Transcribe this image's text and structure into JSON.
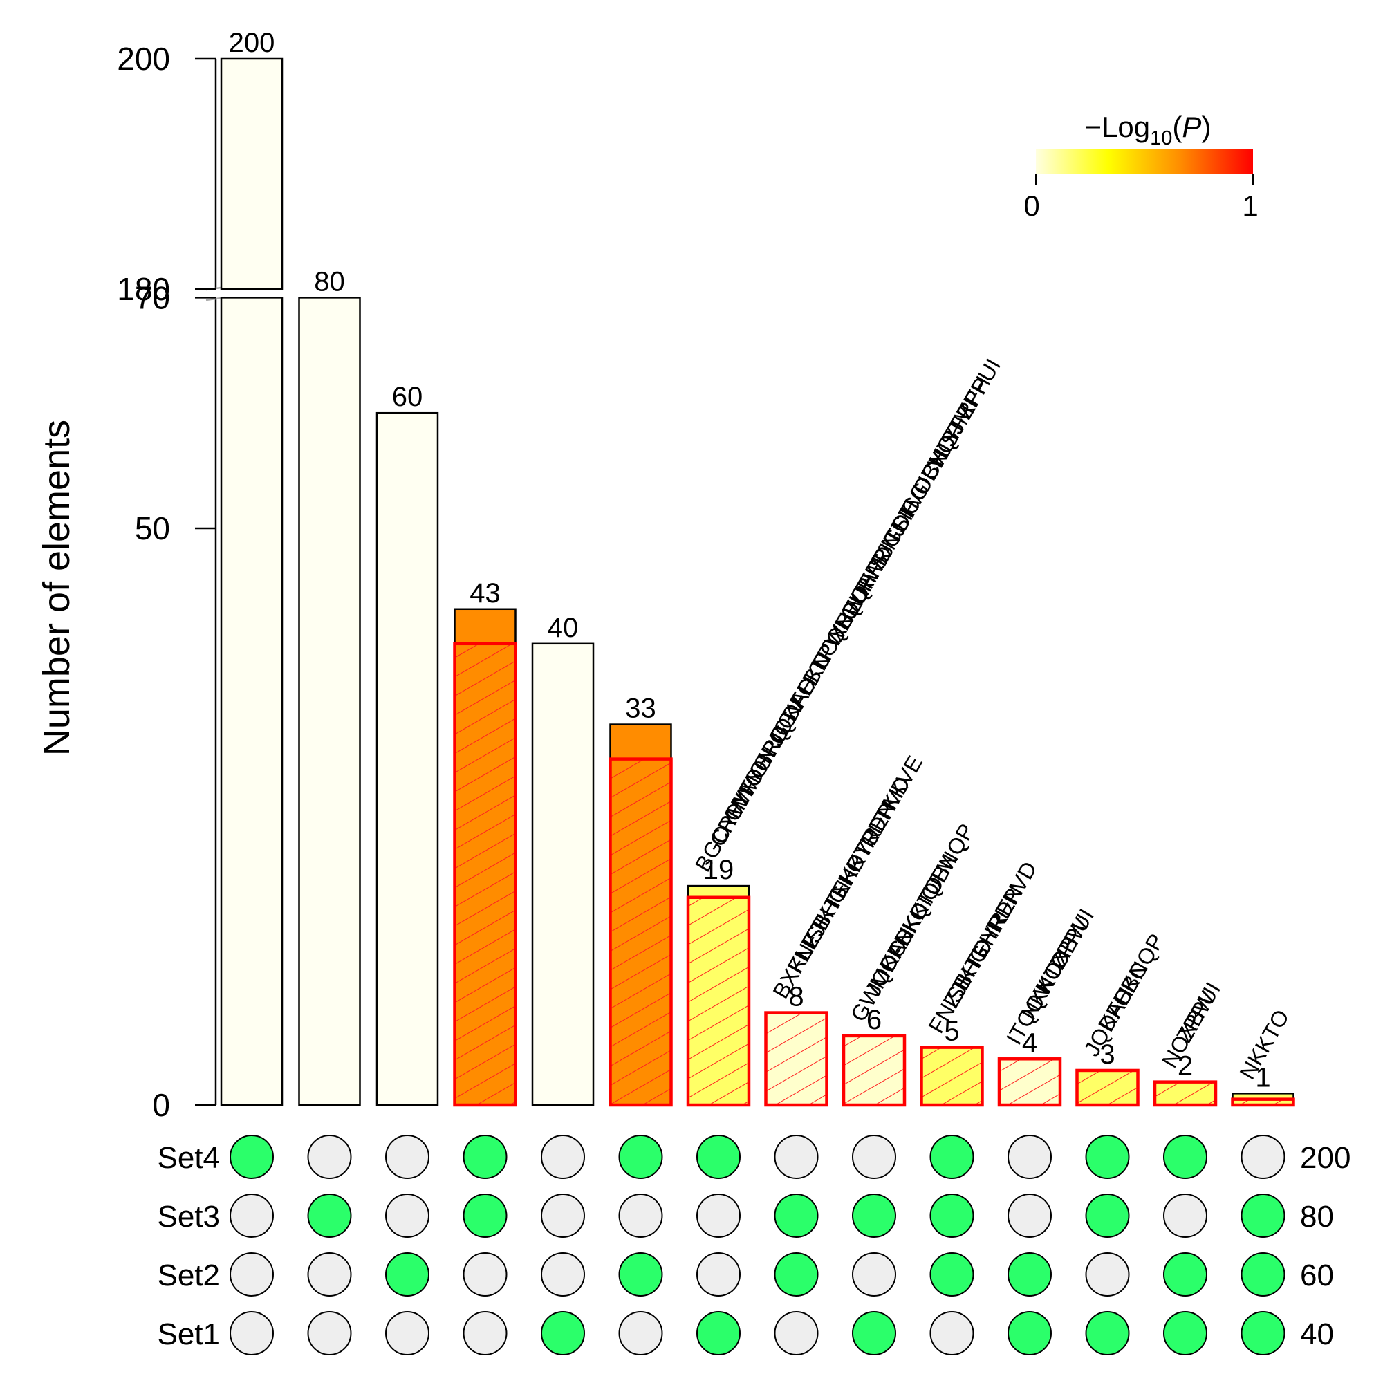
{
  "chart_data": {
    "type": "bar",
    "ylabel": "Number of elements",
    "y_axis": {
      "break": true,
      "lower_ticks": [
        0,
        50,
        70
      ],
      "upper_ticks": [
        180,
        200
      ],
      "lower_range": [
        0,
        70
      ],
      "upper_range": [
        180,
        200
      ]
    },
    "legend": {
      "title_prefix": "−Log",
      "title_sub": "10",
      "title_open": "(",
      "title_var": "P",
      "title_close": ")",
      "min_label": "0",
      "max_label": "1",
      "placement": "top-right",
      "colors": [
        "#ffffe0",
        "#ffff00",
        "#ff8c00",
        "#ff0000"
      ]
    },
    "sets": [
      {
        "name": "Set4",
        "size": "200"
      },
      {
        "name": "Set3",
        "size": "80"
      },
      {
        "name": "Set2",
        "size": "60"
      },
      {
        "name": "Set1",
        "size": "40"
      }
    ],
    "bars": [
      {
        "label": "200",
        "value": 200,
        "sets": [
          1,
          0,
          0,
          0
        ],
        "highlighted": false,
        "expected": null,
        "color": "#fffff2",
        "names": []
      },
      {
        "label": "80",
        "value": 80,
        "sets": [
          0,
          1,
          0,
          0
        ],
        "highlighted": false,
        "expected": null,
        "color": "#fffff2",
        "names": []
      },
      {
        "label": "60",
        "value": 60,
        "sets": [
          0,
          0,
          1,
          0
        ],
        "highlighted": false,
        "expected": null,
        "color": "#fffff2",
        "names": []
      },
      {
        "label": "43",
        "value": 43,
        "sets": [
          1,
          1,
          0,
          0
        ],
        "highlighted": true,
        "expected": 40,
        "color": "#ff8c00",
        "names": []
      },
      {
        "label": "40",
        "value": 40,
        "sets": [
          0,
          0,
          0,
          1
        ],
        "highlighted": false,
        "expected": null,
        "color": "#fffff2",
        "names": []
      },
      {
        "label": "33",
        "value": 33,
        "sets": [
          1,
          0,
          1,
          0
        ],
        "highlighted": true,
        "expected": 30,
        "color": "#ff8c00",
        "names": []
      },
      {
        "label": "19",
        "value": 19,
        "sets": [
          1,
          0,
          0,
          1
        ],
        "highlighted": true,
        "expected": 18,
        "color": "#ffff66",
        "names": [
          "BGOYW",
          "CRHWO",
          "CYMON",
          "FYGRG",
          "HPQGV",
          "JQDAH",
          "KFCKC",
          "LBTPW",
          "NOXBW",
          "QNEQF",
          "QUHFR",
          "RWDNJ",
          "SJGOH",
          "TSICG",
          "TVOCH",
          "UBNQP",
          "VJSJM",
          "YFRFH",
          "ZPPUI"
        ]
      },
      {
        "label": "8",
        "value": 8,
        "sets": [
          0,
          1,
          1,
          0
        ],
        "highlighted": true,
        "expected": 8,
        "color": "#ffffcc",
        "names": [
          "BXKLF",
          "FNZJI",
          "ISBHG",
          "KTEHR",
          "NKKTO",
          "OYREN",
          "RDPVD",
          "TKKVE"
        ]
      },
      {
        "label": "6",
        "value": 6,
        "sets": [
          0,
          1,
          0,
          1
        ],
        "highlighted": true,
        "expected": 6,
        "color": "#ffffcc",
        "names": [
          "GWMOC",
          "JQDAH",
          "KFCKC",
          "NKKTO",
          "QIQTM",
          "UBNQP"
        ]
      },
      {
        "label": "5",
        "value": 5,
        "sets": [
          1,
          1,
          1,
          0
        ],
        "highlighted": true,
        "expected": 5,
        "color": "#ffff66",
        "names": [
          "FNZJI",
          "ISBHG",
          "KTEHR",
          "OYREN",
          "RDPVD"
        ]
      },
      {
        "label": "4",
        "value": 4,
        "sets": [
          0,
          0,
          1,
          1
        ],
        "highlighted": true,
        "expected": 4,
        "color": "#ffffcc",
        "names": [
          "ITQQV",
          "NKKTO",
          "NOXBW",
          "ZPPUI"
        ]
      },
      {
        "label": "3",
        "value": 3,
        "sets": [
          1,
          1,
          0,
          1
        ],
        "highlighted": true,
        "expected": 3,
        "color": "#ffff66",
        "names": [
          "JQDAH",
          "KFCKC",
          "UBNQP"
        ]
      },
      {
        "label": "2",
        "value": 2,
        "sets": [
          1,
          0,
          1,
          1
        ],
        "highlighted": true,
        "expected": 2,
        "color": "#ffff66",
        "names": [
          "NOXBW",
          "ZPPUI"
        ]
      },
      {
        "label": "1",
        "value": 1,
        "sets": [
          0,
          1,
          1,
          1
        ],
        "highlighted": true,
        "expected": 0.5,
        "color": "#ffff66",
        "names": [
          "NKKTO"
        ]
      }
    ],
    "dot_colors": {
      "on": "#2bff6a",
      "off": "#eeeeee"
    }
  }
}
